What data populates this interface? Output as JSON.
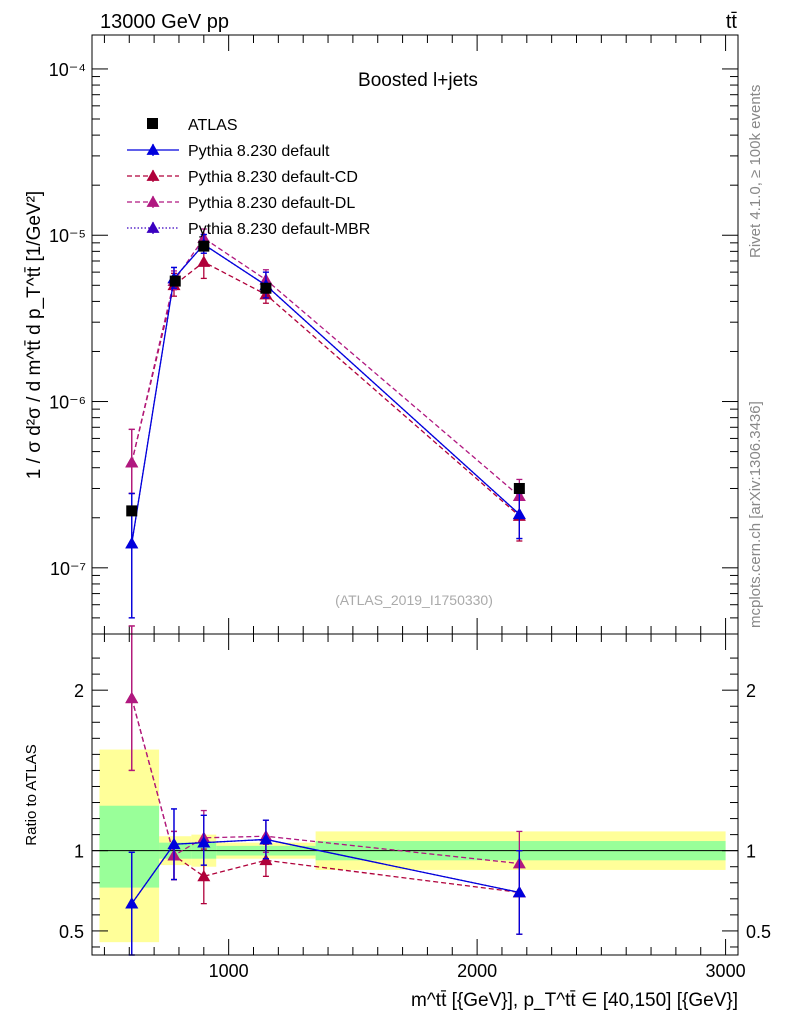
{
  "header": {
    "energy_label": "13000 GeV pp",
    "process_label": "tt̄",
    "subtitle": "Boosted l+jets",
    "analysis_id": "(ATLAS_2019_I1750330)",
    "side_label_rivet": "Rivet 4.1.0, ≥ 100k events",
    "side_label_mcplots": "mcplots.cern.ch [arXiv:1306.3436]"
  },
  "chart_data": [
    {
      "type": "scatter",
      "panel": "main",
      "scale_y": "log",
      "ylabel": "1 / σ d²σ / d m^tt̄ d p_T^tt̄ [1/GeV²]",
      "xlim": [
        450,
        3050
      ],
      "ylim": [
        4e-08,
        0.00016
      ],
      "y_ticks": [
        {
          "value": 1e-07,
          "label": "10⁻⁷"
        },
        {
          "value": 1e-06,
          "label": "10⁻⁶"
        },
        {
          "value": 1e-05,
          "label": "10⁻⁵"
        },
        {
          "value": 0.0001,
          "label": "10⁻⁴"
        }
      ],
      "legend": [
        {
          "label": "ATLAS",
          "style": "square",
          "color": "#000000"
        },
        {
          "label": "Pythia 8.230 default",
          "style": "solid",
          "color": "#0000dd"
        },
        {
          "label": "Pythia 8.230 default-CD",
          "style": "dashed",
          "color": "#b0003a"
        },
        {
          "label": "Pythia 8.230 default-DL",
          "style": "dashed",
          "color": "#b01880"
        },
        {
          "label": "Pythia 8.230 default-MBR",
          "style": "dotted",
          "color": "#3a00c0"
        }
      ],
      "data": {
        "name": "ATLAS",
        "x": [
          610,
          785,
          900,
          1150,
          2170
        ],
        "y": [
          2.2e-07,
          5.3e-06,
          8.6e-06,
          4.8e-06,
          3e-07
        ]
      },
      "series": [
        {
          "name": "Pythia 8.230 default",
          "x": [
            610,
            780,
            900,
            1150,
            2170
          ],
          "y": [
            1.4e-07,
            5.5e-06,
            8.8e-06,
            5e-06,
            2.1e-07
          ],
          "err_lo": [
            9e-08,
            7e-07,
            1e-06,
            8e-07,
            6e-08
          ],
          "err_hi": [
            1.4e-07,
            9e-07,
            1.3e-06,
            1e-06,
            7e-08
          ]
        },
        {
          "name": "Pythia 8.230 default-CD",
          "x": [
            610,
            780,
            900,
            1150,
            2170
          ],
          "y": [
            4.3e-07,
            5e-06,
            6.9e-06,
            4.4e-06,
            2.05e-07
          ],
          "err_lo": [
            1.5e-07,
            7e-07,
            1.4e-06,
            5e-07,
            6e-08
          ],
          "err_hi": [
            2.5e-07,
            9e-07,
            1.4e-06,
            7e-07,
            7e-08
          ]
        },
        {
          "name": "Pythia 8.230 default-DL",
          "x": [
            610,
            780,
            900,
            1150,
            2170
          ],
          "y": [
            4.3e-07,
            5.3e-06,
            9.6e-06,
            5.4e-06,
            2.7e-07
          ],
          "err_lo": [
            1.5e-07,
            6e-07,
            1.3e-06,
            6e-07,
            6e-08
          ],
          "err_hi": [
            2.5e-07,
            8e-07,
            1.3e-06,
            8e-07,
            7e-08
          ]
        },
        {
          "name": "Pythia 8.230 default-MBR",
          "x": [
            610,
            780,
            900,
            1150,
            2170
          ],
          "y": [
            1.4e-07,
            5.5e-06,
            8.8e-06,
            5e-06,
            2.1e-07
          ],
          "err_lo": [
            9e-08,
            7e-07,
            1e-06,
            8e-07,
            6e-08
          ],
          "err_hi": [
            1.4e-07,
            9e-07,
            1.3e-06,
            1e-06,
            7e-08
          ]
        }
      ]
    },
    {
      "type": "scatter",
      "panel": "ratio",
      "ylabel": "Ratio to ATLAS",
      "xlabel": "m^tt̄ [{GeV}], p_T^tt̄ ∈ [40,150] [{GeV}]",
      "xlim": [
        450,
        3050
      ],
      "ylim": [
        0.35,
        2.35
      ],
      "x_ticks": [
        {
          "value": 1000,
          "label": "1000"
        },
        {
          "value": 2000,
          "label": "2000"
        },
        {
          "value": 3000,
          "label": "3000"
        }
      ],
      "y_ticks": [
        {
          "value": 0.5,
          "label": "0.5"
        },
        {
          "value": 1,
          "label": "1"
        },
        {
          "value": 2,
          "label": "2"
        }
      ],
      "bands": [
        {
          "x_lo": 480,
          "x_hi": 720,
          "stat_lo": 0.77,
          "stat_hi": 1.28,
          "tot_lo": 0.43,
          "tot_hi": 1.63
        },
        {
          "x_lo": 720,
          "x_hi": 850,
          "stat_lo": 0.95,
          "stat_hi": 1.05,
          "tot_lo": 0.91,
          "tot_hi": 1.09
        },
        {
          "x_lo": 850,
          "x_hi": 950,
          "stat_lo": 0.95,
          "stat_hi": 1.05,
          "tot_lo": 0.9,
          "tot_hi": 1.1
        },
        {
          "x_lo": 950,
          "x_hi": 1350,
          "stat_lo": 0.97,
          "stat_hi": 1.03,
          "tot_lo": 0.95,
          "tot_hi": 1.05
        },
        {
          "x_lo": 1350,
          "x_hi": 3000,
          "stat_lo": 0.94,
          "stat_hi": 1.06,
          "tot_lo": 0.88,
          "tot_hi": 1.12
        }
      ],
      "series": [
        {
          "name": "Pythia 8.230 default",
          "x": [
            610,
            780,
            900,
            1150,
            2170
          ],
          "y": [
            0.67,
            1.04,
            1.05,
            1.07,
            0.74
          ],
          "err_lo": [
            0.32,
            0.22,
            0.14,
            0.12,
            0.26
          ],
          "err_hi": [
            0.32,
            0.22,
            0.17,
            0.12,
            0.26
          ]
        },
        {
          "name": "Pythia 8.230 default-CD",
          "x": [
            610,
            780,
            900,
            1150,
            2170
          ],
          "y": [
            1.95,
            0.97,
            0.84,
            0.94,
            0.74
          ],
          "err_lo": [
            0.45,
            0.15,
            0.17,
            0.1,
            0.26
          ],
          "err_hi": [
            0.45,
            0.15,
            0.17,
            0.1,
            0.26
          ]
        },
        {
          "name": "Pythia 8.230 default-DL",
          "x": [
            610,
            780,
            900,
            1150,
            2170
          ],
          "y": [
            1.95,
            0.97,
            1.08,
            1.09,
            0.92
          ],
          "err_lo": [
            0.45,
            0.15,
            0.17,
            0.1,
            0.2
          ],
          "err_hi": [
            0.45,
            0.15,
            0.17,
            0.1,
            0.2
          ]
        },
        {
          "name": "Pythia 8.230 default-MBR",
          "x": [
            610,
            780,
            900,
            1150,
            2170
          ],
          "y": [
            0.67,
            1.04,
            1.05,
            1.07,
            0.74
          ],
          "err_lo": [
            0.32,
            0.22,
            0.14,
            0.12,
            0.26
          ],
          "err_hi": [
            0.32,
            0.22,
            0.17,
            0.12,
            0.26
          ]
        }
      ]
    }
  ]
}
